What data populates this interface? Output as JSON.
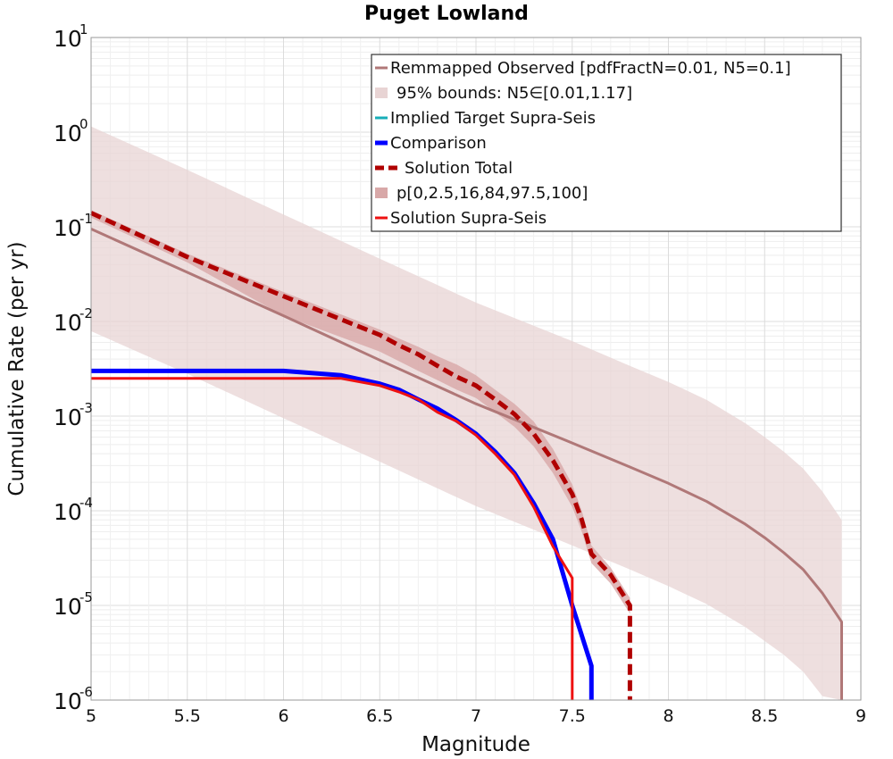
{
  "chart_data": {
    "type": "line",
    "title": "Puget Lowland",
    "xlabel": "Magnitude",
    "ylabel": "Cumulative Rate (per yr)",
    "xlim": [
      5,
      9
    ],
    "ylim": [
      1e-06,
      10
    ],
    "yscale": "log",
    "grid": true,
    "legend_position": "top-right",
    "x_ticks": [
      "5",
      "5.5",
      "6",
      "6.5",
      "7",
      "7.5",
      "8",
      "8.5",
      "9"
    ],
    "y_ticks": [
      {
        "base": "10",
        "exp": "1",
        "value": 10
      },
      {
        "base": "10",
        "exp": "0",
        "value": 1
      },
      {
        "base": "10",
        "exp": "-1",
        "value": 0.1
      },
      {
        "base": "10",
        "exp": "-2",
        "value": 0.01
      },
      {
        "base": "10",
        "exp": "-3",
        "value": 0.001
      },
      {
        "base": "10",
        "exp": "-4",
        "value": 0.0001
      },
      {
        "base": "10",
        "exp": "-5",
        "value": 1e-05
      },
      {
        "base": "10",
        "exp": "-6",
        "value": 1e-06
      }
    ],
    "series": [
      {
        "name": "Remmapped Observed [pdfFractN=0.01, N5=0.1]",
        "kind": "line",
        "color": "#b07878",
        "width": 3,
        "x": [
          5.0,
          5.5,
          6.0,
          6.5,
          7.0,
          7.5,
          7.8,
          8.0,
          8.2,
          8.4,
          8.5,
          8.6,
          8.7,
          8.8,
          8.9,
          8.9
        ],
        "y": [
          0.095,
          0.033,
          0.0115,
          0.0039,
          0.00135,
          0.00052,
          0.00029,
          0.000195,
          0.000125,
          7.2e-05,
          5.2e-05,
          3.6e-05,
          2.4e-05,
          1.35e-05,
          6.7e-06,
          1e-06
        ]
      },
      {
        "name": "95% bounds: N5∈[0.01,1.17]",
        "kind": "band",
        "color": "#e8d4d4",
        "x": [
          5.0,
          5.5,
          6.0,
          6.5,
          7.0,
          7.5,
          7.8,
          8.0,
          8.2,
          8.4,
          8.5,
          8.6,
          8.7,
          8.8,
          8.9
        ],
        "y_upper": [
          1.15,
          0.4,
          0.135,
          0.046,
          0.0158,
          0.0062,
          0.0034,
          0.0023,
          0.00148,
          0.00084,
          0.0006,
          0.00042,
          0.00028,
          0.00016,
          8e-05
        ],
        "y_lower": [
          0.0079,
          0.0028,
          0.00095,
          0.00033,
          0.000112,
          4.3e-05,
          2.4e-05,
          1.6e-05,
          1.03e-05,
          5.9e-06,
          4.2e-06,
          3e-06,
          2e-06,
          1.1e-06,
          1e-06
        ]
      },
      {
        "name": "Implied Target Supra-Seis",
        "kind": "line",
        "color": "#17aeb8",
        "width": 3,
        "x": [],
        "y": []
      },
      {
        "name": "Comparison",
        "kind": "line",
        "color": "#0000ff",
        "width": 5,
        "x": [
          5.0,
          6.0,
          6.1,
          6.3,
          6.5,
          6.6,
          6.7,
          6.8,
          6.9,
          7.0,
          7.1,
          7.2,
          7.3,
          7.4,
          7.5,
          7.6,
          7.6
        ],
        "y": [
          0.003,
          0.003,
          0.0029,
          0.0027,
          0.0022,
          0.0019,
          0.0015,
          0.0012,
          0.0009,
          0.00065,
          0.00042,
          0.00025,
          0.00012,
          5e-05,
          1e-05,
          2.3e-06,
          1e-06
        ]
      },
      {
        "name": "Solution Total",
        "kind": "line",
        "color": "#b00000",
        "width": 5,
        "dashed": true,
        "x": [
          5.0,
          5.5,
          6.0,
          6.5,
          6.6,
          6.7,
          6.8,
          6.9,
          7.0,
          7.1,
          7.2,
          7.3,
          7.4,
          7.5,
          7.55,
          7.6,
          7.7,
          7.8,
          7.8
        ],
        "y": [
          0.14,
          0.048,
          0.0185,
          0.0072,
          0.0056,
          0.0045,
          0.0034,
          0.0026,
          0.0021,
          0.0015,
          0.00105,
          0.00065,
          0.00034,
          0.00015,
          8e-05,
          3.5e-05,
          2.1e-05,
          1e-05,
          1e-06
        ]
      },
      {
        "name": "p[0,2.5,16,84,97.5,100]",
        "kind": "band",
        "color": "#d8a8a8",
        "x": [
          5.0,
          5.5,
          6.0,
          6.5,
          6.6,
          6.7,
          6.8,
          6.9,
          7.0,
          7.1,
          7.2,
          7.3,
          7.4,
          7.5,
          7.55,
          7.6,
          7.7,
          7.8
        ],
        "y_upper": [
          0.15,
          0.052,
          0.0205,
          0.0082,
          0.0066,
          0.0054,
          0.0043,
          0.0035,
          0.0027,
          0.0019,
          0.00135,
          0.00088,
          0.00045,
          0.00019,
          0.0001,
          4.3e-05,
          2.5e-05,
          1.2e-05
        ],
        "y_lower": [
          0.125,
          0.042,
          0.0115,
          0.0048,
          0.0038,
          0.003,
          0.0024,
          0.0019,
          0.00155,
          0.0011,
          0.00077,
          0.00048,
          0.00025,
          0.00011,
          6e-05,
          2.8e-05,
          1.7e-05,
          8.2e-06
        ]
      },
      {
        "name": "Solution Supra-Seis",
        "kind": "line",
        "color": "#ee1111",
        "width": 3,
        "x": [
          5.0,
          6.3,
          6.5,
          6.6,
          6.7,
          6.8,
          6.9,
          7.0,
          7.1,
          7.2,
          7.3,
          7.4,
          7.5,
          7.5
        ],
        "y": [
          0.0025,
          0.0025,
          0.0021,
          0.0018,
          0.0015,
          0.0011,
          0.00088,
          0.00063,
          0.0004,
          0.00024,
          0.00011,
          4.2e-05,
          1.95e-05,
          1e-06
        ]
      }
    ]
  }
}
